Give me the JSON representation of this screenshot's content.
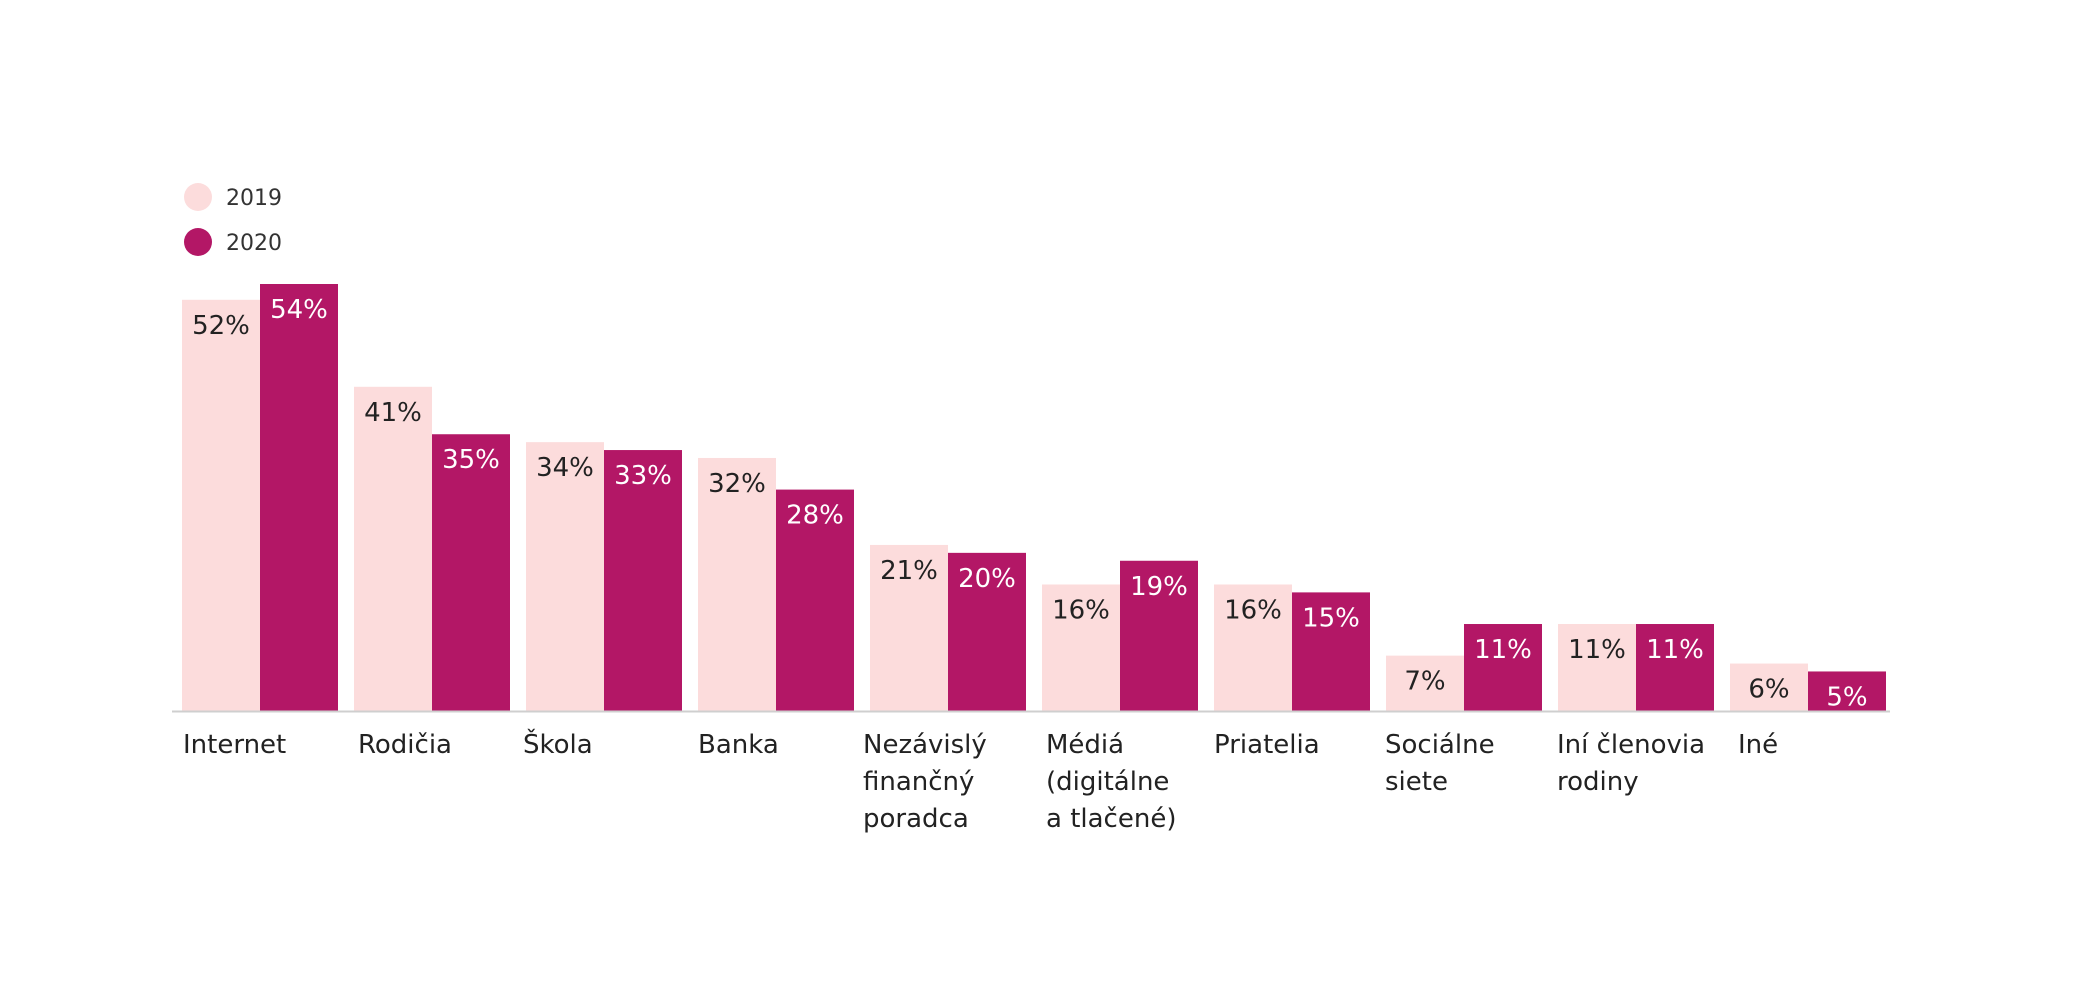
{
  "chart_data": {
    "type": "bar",
    "categories": [
      "Internet",
      "Rodičia",
      "Škola",
      "Banka",
      "Nezávislý finančný poradca",
      "Médiá (digitálne a tlačené)",
      "Priatelia",
      "Sociálne siete",
      "Iní členovia rodiny",
      "Iné"
    ],
    "category_lines": [
      [
        "Internet"
      ],
      [
        "Rodičia"
      ],
      [
        "Škola"
      ],
      [
        "Banka"
      ],
      [
        "Nezávislý",
        "finančný",
        "poradca"
      ],
      [
        "Médiá",
        "(digitálne",
        "a tlačené)"
      ],
      [
        "Priatelia"
      ],
      [
        "Sociálne",
        "siete"
      ],
      [
        "Iní členovia",
        "rodiny"
      ],
      [
        "Iné"
      ]
    ],
    "series": [
      {
        "name": "2019",
        "values": [
          52,
          41,
          34,
          32,
          21,
          16,
          16,
          7,
          11,
          6
        ],
        "color": "#fcdcdc",
        "label_color": "#222222"
      },
      {
        "name": "2020",
        "values": [
          54,
          35,
          33,
          28,
          20,
          19,
          15,
          11,
          11,
          5
        ],
        "color": "#b31766",
        "label_color": "#ffffff"
      }
    ],
    "value_suffix": "%",
    "ylim": [
      0,
      54
    ],
    "legend_position": "top-left",
    "grid": false,
    "baseline_color": "#cfcfcf"
  }
}
